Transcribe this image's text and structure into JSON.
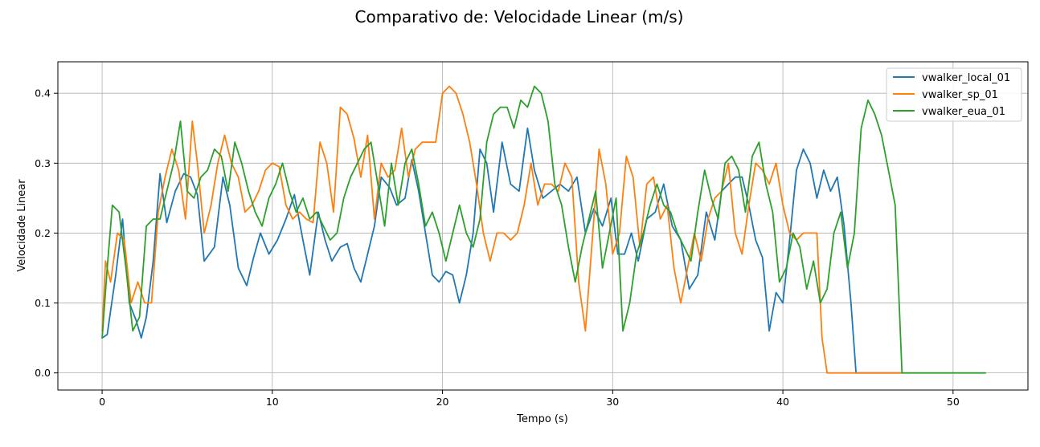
{
  "chart_data": {
    "type": "line",
    "title": "Comparativo de: Velocidade Linear (m/s)",
    "xlabel": "Tempo (s)",
    "ylabel": "Velocidade Linear",
    "xlim": [
      -2.6,
      54.4
    ],
    "ylim": [
      -0.0245,
      0.445
    ],
    "xticks": [
      0,
      10,
      20,
      30,
      40,
      50
    ],
    "yticks": [
      0.0,
      0.1,
      0.2,
      0.3,
      0.4
    ],
    "xtick_labels": [
      "0",
      "10",
      "20",
      "30",
      "40",
      "50"
    ],
    "ytick_labels": [
      "0.0",
      "0.1",
      "0.2",
      "0.3",
      "0.4"
    ],
    "grid": true,
    "legend_position": "upper-right",
    "series": [
      {
        "name": "vwalker_local_01",
        "color": "#1f77b4",
        "x": [
          0,
          0.3,
          0.8,
          1.2,
          1.6,
          2.0,
          2.3,
          2.6,
          3.0,
          3.4,
          3.8,
          4.3,
          4.8,
          5.2,
          5.6,
          6.0,
          6.6,
          7.1,
          7.5,
          8.0,
          8.5,
          8.9,
          9.3,
          9.8,
          10.3,
          10.8,
          11.3,
          11.8,
          12.2,
          12.7,
          13.1,
          13.5,
          14.0,
          14.4,
          14.8,
          15.2,
          15.6,
          16.0,
          16.4,
          16.9,
          17.3,
          17.8,
          18.2,
          18.6,
          19.0,
          19.4,
          19.8,
          20.2,
          20.6,
          21.0,
          21.4,
          21.8,
          22.2,
          22.6,
          23.0,
          23.5,
          24.0,
          24.5,
          25.0,
          25.4,
          25.9,
          26.4,
          26.9,
          27.4,
          27.9,
          28.4,
          28.9,
          29.4,
          29.9,
          30.3,
          30.7,
          31.1,
          31.5,
          32.0,
          32.5,
          33.0,
          33.5,
          34.0,
          34.5,
          35.0,
          35.5,
          36.0,
          36.4,
          36.8,
          37.2,
          37.6,
          38.0,
          38.4,
          38.8,
          39.2,
          39.6,
          40.0,
          40.4,
          40.8,
          41.2,
          41.6,
          42.0,
          42.4,
          42.8,
          43.2,
          43.6,
          44.0,
          44.3,
          44.6,
          45.5,
          46.5,
          47.0
        ],
        "y": [
          0.05,
          0.055,
          0.14,
          0.22,
          0.1,
          0.075,
          0.05,
          0.08,
          0.16,
          0.285,
          0.215,
          0.26,
          0.285,
          0.28,
          0.255,
          0.16,
          0.18,
          0.28,
          0.24,
          0.15,
          0.125,
          0.165,
          0.2,
          0.17,
          0.19,
          0.22,
          0.255,
          0.19,
          0.14,
          0.23,
          0.19,
          0.16,
          0.18,
          0.185,
          0.15,
          0.13,
          0.17,
          0.21,
          0.28,
          0.265,
          0.24,
          0.25,
          0.305,
          0.26,
          0.2,
          0.14,
          0.13,
          0.145,
          0.14,
          0.1,
          0.14,
          0.2,
          0.32,
          0.3,
          0.23,
          0.33,
          0.27,
          0.26,
          0.35,
          0.29,
          0.25,
          0.26,
          0.27,
          0.26,
          0.28,
          0.2,
          0.235,
          0.21,
          0.25,
          0.17,
          0.17,
          0.2,
          0.16,
          0.22,
          0.23,
          0.27,
          0.21,
          0.19,
          0.12,
          0.14,
          0.23,
          0.19,
          0.26,
          0.27,
          0.28,
          0.28,
          0.24,
          0.19,
          0.165,
          0.06,
          0.115,
          0.1,
          0.19,
          0.29,
          0.32,
          0.3,
          0.25,
          0.29,
          0.26,
          0.28,
          0.21,
          0.1,
          0.0,
          0.0,
          0.0,
          0.0,
          0.0
        ]
      },
      {
        "name": "vwalker_sp_01",
        "color": "#ff7f0e",
        "x": [
          0,
          0.2,
          0.5,
          0.9,
          1.3,
          1.7,
          2.1,
          2.5,
          2.9,
          3.3,
          3.7,
          4.1,
          4.5,
          4.9,
          5.3,
          5.6,
          6.0,
          6.4,
          6.8,
          7.2,
          7.6,
          8.0,
          8.4,
          8.8,
          9.2,
          9.6,
          10.0,
          10.4,
          10.8,
          11.2,
          11.6,
          12.0,
          12.4,
          12.8,
          13.2,
          13.6,
          14.0,
          14.4,
          14.8,
          15.2,
          15.6,
          16.0,
          16.4,
          16.8,
          17.2,
          17.6,
          18.0,
          18.4,
          18.8,
          19.2,
          19.6,
          20.0,
          20.4,
          20.8,
          21.2,
          21.6,
          22.0,
          22.4,
          22.8,
          23.2,
          23.6,
          24.0,
          24.4,
          24.8,
          25.2,
          25.6,
          26.0,
          26.4,
          26.8,
          27.2,
          27.6,
          28.0,
          28.4,
          28.8,
          29.2,
          29.6,
          30.0,
          30.4,
          30.8,
          31.2,
          31.6,
          32.0,
          32.4,
          32.8,
          33.2,
          33.6,
          34.0,
          34.4,
          34.8,
          35.2,
          35.6,
          36.0,
          36.4,
          36.8,
          37.2,
          37.6,
          38.0,
          38.4,
          38.8,
          39.2,
          39.6,
          40.0,
          40.4,
          40.8,
          41.2,
          41.6,
          42.0,
          42.3,
          42.6,
          43.0,
          44.0,
          45.0,
          46.0,
          47.0
        ],
        "y": [
          0.06,
          0.16,
          0.13,
          0.2,
          0.19,
          0.1,
          0.13,
          0.1,
          0.1,
          0.23,
          0.28,
          0.32,
          0.29,
          0.22,
          0.36,
          0.3,
          0.2,
          0.24,
          0.3,
          0.34,
          0.3,
          0.28,
          0.23,
          0.24,
          0.26,
          0.29,
          0.3,
          0.295,
          0.24,
          0.22,
          0.23,
          0.22,
          0.215,
          0.33,
          0.3,
          0.23,
          0.38,
          0.37,
          0.335,
          0.28,
          0.34,
          0.22,
          0.3,
          0.28,
          0.29,
          0.35,
          0.28,
          0.32,
          0.33,
          0.33,
          0.33,
          0.4,
          0.41,
          0.4,
          0.37,
          0.33,
          0.27,
          0.2,
          0.16,
          0.2,
          0.2,
          0.19,
          0.2,
          0.24,
          0.3,
          0.24,
          0.27,
          0.27,
          0.26,
          0.3,
          0.28,
          0.13,
          0.06,
          0.19,
          0.32,
          0.27,
          0.17,
          0.2,
          0.31,
          0.28,
          0.18,
          0.27,
          0.28,
          0.22,
          0.24,
          0.15,
          0.1,
          0.15,
          0.2,
          0.16,
          0.22,
          0.25,
          0.26,
          0.3,
          0.2,
          0.17,
          0.24,
          0.3,
          0.29,
          0.27,
          0.3,
          0.24,
          0.2,
          0.19,
          0.2,
          0.2,
          0.2,
          0.05,
          0.0,
          0.0,
          0.0,
          0.0,
          0.0,
          0.0
        ]
      },
      {
        "name": "vwalker_eua_01",
        "color": "#2ca02c",
        "x": [
          0,
          0.3,
          0.6,
          1.0,
          1.4,
          1.8,
          2.2,
          2.6,
          3.0,
          3.4,
          3.8,
          4.2,
          4.6,
          5.0,
          5.4,
          5.8,
          6.2,
          6.6,
          7.0,
          7.4,
          7.8,
          8.2,
          8.6,
          9.0,
          9.4,
          9.8,
          10.2,
          10.6,
          11.0,
          11.4,
          11.8,
          12.2,
          12.6,
          13.0,
          13.4,
          13.8,
          14.2,
          14.6,
          15.0,
          15.4,
          15.8,
          16.2,
          16.6,
          17.0,
          17.4,
          17.8,
          18.2,
          18.6,
          19.0,
          19.4,
          19.8,
          20.2,
          20.6,
          21.0,
          21.4,
          21.8,
          22.2,
          22.6,
          23.0,
          23.4,
          23.8,
          24.2,
          24.6,
          25.0,
          25.4,
          25.8,
          26.2,
          26.6,
          27.0,
          27.4,
          27.8,
          28.2,
          28.6,
          29.0,
          29.4,
          29.8,
          30.2,
          30.6,
          31.0,
          31.4,
          31.8,
          32.2,
          32.6,
          33.0,
          33.4,
          33.8,
          34.2,
          34.6,
          35.0,
          35.4,
          35.8,
          36.2,
          36.6,
          37.0,
          37.4,
          37.8,
          38.2,
          38.6,
          39.0,
          39.4,
          39.8,
          40.2,
          40.6,
          41.0,
          41.4,
          41.8,
          42.2,
          42.6,
          43.0,
          43.4,
          43.8,
          44.2,
          44.6,
          45.0,
          45.4,
          45.8,
          46.2,
          46.6,
          47.0,
          47.2,
          48.0,
          50.0,
          51.9
        ],
        "y": [
          0.05,
          0.15,
          0.24,
          0.23,
          0.15,
          0.06,
          0.08,
          0.21,
          0.22,
          0.22,
          0.26,
          0.3,
          0.36,
          0.26,
          0.25,
          0.28,
          0.29,
          0.32,
          0.31,
          0.26,
          0.33,
          0.3,
          0.26,
          0.23,
          0.21,
          0.25,
          0.27,
          0.3,
          0.26,
          0.23,
          0.25,
          0.22,
          0.23,
          0.21,
          0.19,
          0.2,
          0.25,
          0.28,
          0.3,
          0.32,
          0.33,
          0.27,
          0.21,
          0.3,
          0.24,
          0.3,
          0.32,
          0.27,
          0.21,
          0.23,
          0.2,
          0.16,
          0.2,
          0.24,
          0.2,
          0.18,
          0.22,
          0.33,
          0.37,
          0.38,
          0.38,
          0.35,
          0.39,
          0.38,
          0.41,
          0.4,
          0.36,
          0.27,
          0.24,
          0.18,
          0.13,
          0.18,
          0.22,
          0.26,
          0.15,
          0.2,
          0.25,
          0.06,
          0.1,
          0.17,
          0.2,
          0.24,
          0.27,
          0.24,
          0.23,
          0.2,
          0.18,
          0.16,
          0.23,
          0.29,
          0.25,
          0.22,
          0.3,
          0.31,
          0.29,
          0.23,
          0.31,
          0.33,
          0.27,
          0.23,
          0.13,
          0.15,
          0.2,
          0.18,
          0.12,
          0.16,
          0.1,
          0.12,
          0.2,
          0.23,
          0.15,
          0.2,
          0.35,
          0.39,
          0.37,
          0.34,
          0.29,
          0.24,
          0.0,
          0.0,
          0.0,
          0.0,
          0.0
        ]
      }
    ]
  }
}
